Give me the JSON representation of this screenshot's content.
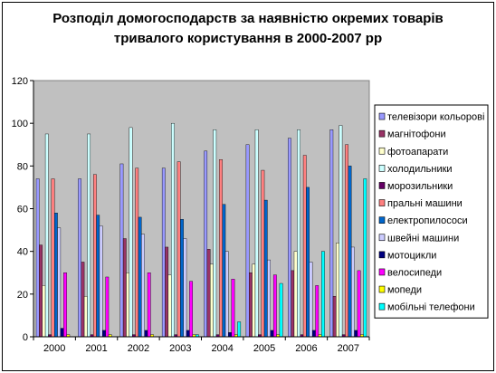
{
  "chart_data": {
    "type": "bar",
    "title_lines": [
      "Розподіл домогосподарств за наявністю окремих товарів",
      "тривалого користування в 2000-2007 рр"
    ],
    "xlabel": "",
    "ylabel": "",
    "ylim": [
      0,
      120
    ],
    "yticks": [
      0,
      20,
      40,
      60,
      80,
      100,
      120
    ],
    "grid": false,
    "plot_background": "#c0c0c0",
    "legend_position": "right",
    "categories": [
      "2000",
      "2001",
      "2002",
      "2003",
      "2004",
      "2005",
      "2006",
      "2007"
    ],
    "series": [
      {
        "name": "телевізори кольорові",
        "color": "#9999ff",
        "values": [
          74,
          74,
          81,
          79,
          87,
          90,
          93,
          97
        ]
      },
      {
        "name": "магнітофони",
        "color": "#993366",
        "values": [
          43,
          35,
          46,
          42,
          41,
          30,
          31,
          19
        ]
      },
      {
        "name": "фотоапарати",
        "color": "#ffffcc",
        "values": [
          24,
          19,
          30,
          29,
          34,
          34,
          40,
          44
        ]
      },
      {
        "name": "холодильники",
        "color": "#ccffff",
        "values": [
          95,
          95,
          98,
          100,
          97,
          97,
          97,
          99
        ]
      },
      {
        "name": "морозильники",
        "color": "#660066",
        "values": [
          1,
          1,
          1,
          1,
          1,
          1,
          1,
          1
        ]
      },
      {
        "name": "пральні машини",
        "color": "#ff8080",
        "values": [
          74,
          76,
          79,
          82,
          83,
          78,
          85,
          90
        ]
      },
      {
        "name": "електропилососи",
        "color": "#0066cc",
        "values": [
          58,
          57,
          56,
          55,
          62,
          64,
          70,
          80
        ]
      },
      {
        "name": "швейні машини",
        "color": "#ccccff",
        "values": [
          51,
          52,
          48,
          46,
          40,
          36,
          35,
          42
        ]
      },
      {
        "name": "мотоцикли",
        "color": "#000080",
        "values": [
          4,
          3,
          3,
          3,
          2,
          3,
          3,
          3
        ]
      },
      {
        "name": "велосипеди",
        "color": "#ff00ff",
        "values": [
          30,
          28,
          30,
          26,
          27,
          29,
          24,
          31
        ]
      },
      {
        "name": "мопеди",
        "color": "#ffff00",
        "values": [
          1,
          1,
          1,
          1,
          1,
          1,
          1,
          1
        ]
      },
      {
        "name": "мобільні телефони",
        "color": "#00ffff",
        "values": [
          0,
          0,
          0,
          1,
          7,
          25,
          40,
          74
        ]
      }
    ]
  }
}
